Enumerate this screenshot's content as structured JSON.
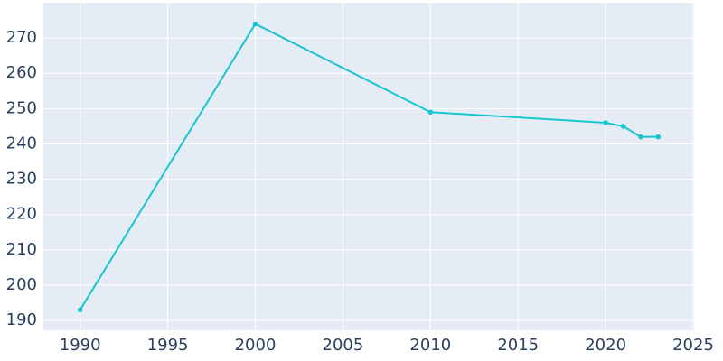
{
  "chart_data": {
    "type": "line",
    "x": [
      1990,
      2000,
      2010,
      2020,
      2021,
      2022,
      2023
    ],
    "series": [
      {
        "color": "#17c6cf",
        "values": [
          193,
          274,
          249,
          246,
          245,
          242,
          242
        ]
      }
    ],
    "xlim": [
      1987.9,
      2025.05
    ],
    "xticks": [
      1990,
      1995,
      2000,
      2005,
      2010,
      2015,
      2020,
      2025
    ],
    "ylim": [
      187.2,
      280
    ],
    "yticks": [
      190,
      200,
      210,
      220,
      230,
      240,
      250,
      260,
      270
    ],
    "grid": true,
    "markers": true
  }
}
